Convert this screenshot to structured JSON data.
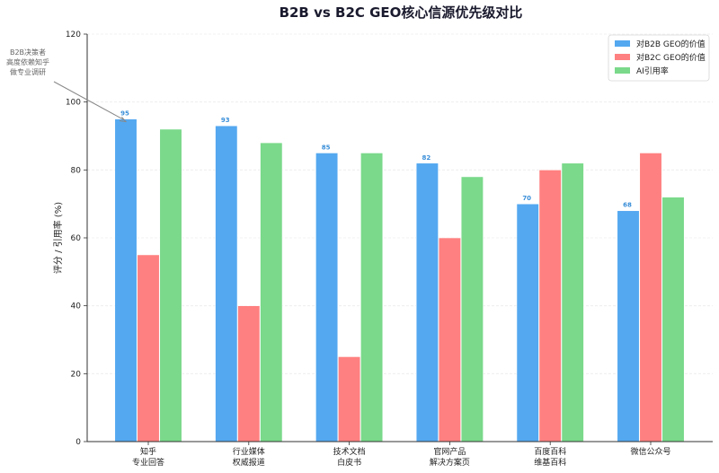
{
  "chart_data": {
    "type": "bar",
    "title": "B2B vs B2C GEO核心信源优先级对比",
    "ylabel": "评分 / 引用率 (%)",
    "xlabel": "",
    "ylim": [
      0,
      120
    ],
    "yticks": [
      0,
      20,
      40,
      60,
      80,
      100,
      120
    ],
    "grid": true,
    "legend_position": "top-right",
    "categories": [
      [
        "知乎",
        "专业回答"
      ],
      [
        "行业媒体",
        "权威报道"
      ],
      [
        "技术文档",
        "白皮书"
      ],
      [
        "官网产品",
        "解决方案页"
      ],
      [
        "百度百科",
        "维基百科"
      ],
      [
        "微信公众号"
      ]
    ],
    "series": [
      {
        "name": "对B2B GEO的价值",
        "color": "#54a8f0",
        "values": [
          95,
          93,
          85,
          82,
          70,
          68
        ],
        "show_labels": true
      },
      {
        "name": "对B2C GEO的价值",
        "color": "#ff8080",
        "values": [
          55,
          40,
          25,
          60,
          80,
          85
        ],
        "show_labels": false
      },
      {
        "name": "AI引用率",
        "color": "#7ad98a",
        "values": [
          92,
          88,
          85,
          78,
          82,
          72
        ],
        "show_labels": false
      }
    ],
    "annotation": {
      "lines": [
        "B2B决策者",
        "高度依赖知乎",
        "做专业调研"
      ],
      "target_category": 0,
      "target_value": 95
    }
  }
}
